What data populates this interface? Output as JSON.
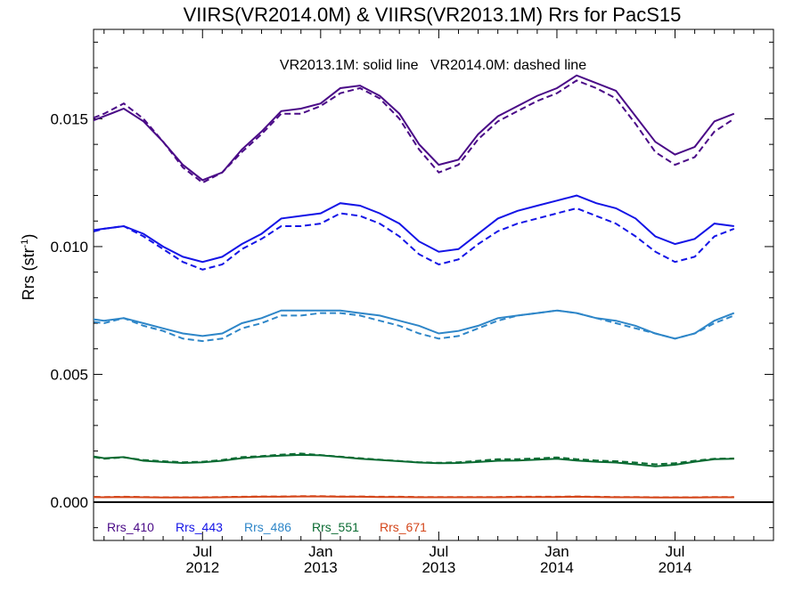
{
  "chart_data": {
    "type": "line",
    "title": "VIIRS(VR2014.0M) & VIIRS(VR2013.1M)  Rrs for PacS15",
    "annotation": "VR2013.1M: solid line   VR2014.0M: dashed line",
    "ylabel_main": "Rrs (str",
    "ylabel_sup": "-1",
    "ylabel_close": ")",
    "x_tick_labels": [
      {
        "x": 6,
        "month": "Jul",
        "year": "2012"
      },
      {
        "x": 12,
        "month": "Jan",
        "year": "2013"
      },
      {
        "x": 18,
        "month": "Jul",
        "year": "2013"
      },
      {
        "x": 24,
        "month": "Jan",
        "year": "2014"
      },
      {
        "x": 30,
        "month": "Jul",
        "year": "2014"
      }
    ],
    "y_tick_labels": [
      {
        "value": 0.0,
        "label": "0.000"
      },
      {
        "value": 0.005,
        "label": "0.005"
      },
      {
        "value": 0.01,
        "label": "0.010"
      },
      {
        "value": 0.015,
        "label": "0.015"
      }
    ],
    "xlim": [
      "2012-01-15",
      "2014-12-01"
    ],
    "ylim": [
      -0.0015,
      0.0185
    ],
    "x": [
      "2012-01-01",
      "2012-02-01",
      "2012-03-01",
      "2012-04-01",
      "2012-05-01",
      "2012-06-01",
      "2012-07-01",
      "2012-08-01",
      "2012-09-01",
      "2012-10-01",
      "2012-11-01",
      "2012-12-01",
      "2013-01-01",
      "2013-02-01",
      "2013-03-01",
      "2013-04-01",
      "2013-05-01",
      "2013-06-01",
      "2013-07-01",
      "2013-08-01",
      "2013-09-01",
      "2013-10-01",
      "2013-11-01",
      "2013-12-01",
      "2014-01-01",
      "2014-02-01",
      "2014-03-01",
      "2014-04-01",
      "2014-05-01",
      "2014-06-01",
      "2014-07-01",
      "2014-08-01",
      "2014-09-01",
      "2014-10-01"
    ],
    "series": [
      {
        "name": "Rrs_410",
        "color": "#4a0a87",
        "solid": [
          0.0148,
          0.0151,
          0.0154,
          0.0149,
          0.0141,
          0.0132,
          0.0126,
          0.0129,
          0.0138,
          0.0145,
          0.0153,
          0.0154,
          0.0156,
          0.0162,
          0.0163,
          0.0159,
          0.0152,
          0.014,
          0.0132,
          0.0134,
          0.0144,
          0.0151,
          0.0155,
          0.0159,
          0.0162,
          0.0167,
          0.0164,
          0.0161,
          0.0151,
          0.0141,
          0.0136,
          0.0139,
          0.0149,
          0.0152
        ],
        "dashed": [
          0.0149,
          0.0152,
          0.0156,
          0.015,
          0.0141,
          0.0131,
          0.0125,
          0.0129,
          0.0137,
          0.0144,
          0.0152,
          0.0152,
          0.0155,
          0.016,
          0.0162,
          0.0158,
          0.015,
          0.0138,
          0.0129,
          0.0132,
          0.0142,
          0.0149,
          0.0153,
          0.0157,
          0.016,
          0.0165,
          0.0162,
          0.0158,
          0.0148,
          0.0137,
          0.0132,
          0.0135,
          0.0145,
          0.015
        ]
      },
      {
        "name": "Rrs_443",
        "color": "#1414e6",
        "solid": [
          0.0106,
          0.0107,
          0.0108,
          0.0105,
          0.01,
          0.0096,
          0.0094,
          0.0096,
          0.0101,
          0.0105,
          0.0111,
          0.0112,
          0.0113,
          0.0117,
          0.0116,
          0.0113,
          0.0109,
          0.0102,
          0.0098,
          0.0099,
          0.0105,
          0.0111,
          0.0114,
          0.0116,
          0.0118,
          0.012,
          0.0117,
          0.0115,
          0.0111,
          0.0104,
          0.0101,
          0.0103,
          0.0109,
          0.0108
        ],
        "dashed": [
          0.0105,
          0.0107,
          0.0108,
          0.0104,
          0.0099,
          0.0094,
          0.0091,
          0.0093,
          0.0099,
          0.0103,
          0.0108,
          0.0108,
          0.0109,
          0.0113,
          0.0112,
          0.0109,
          0.0104,
          0.0097,
          0.0093,
          0.0095,
          0.0101,
          0.0106,
          0.0109,
          0.0111,
          0.0113,
          0.0115,
          0.0112,
          0.0109,
          0.0104,
          0.0098,
          0.0094,
          0.0096,
          0.0104,
          0.0107
        ]
      },
      {
        "name": "Rrs_486",
        "color": "#2e86c8",
        "solid": [
          0.0072,
          0.0071,
          0.0072,
          0.007,
          0.0068,
          0.0066,
          0.0065,
          0.0066,
          0.007,
          0.0072,
          0.0075,
          0.0075,
          0.0075,
          0.0075,
          0.0074,
          0.0073,
          0.0071,
          0.0069,
          0.0066,
          0.0067,
          0.0069,
          0.0072,
          0.0073,
          0.0074,
          0.0075,
          0.0074,
          0.0072,
          0.0071,
          0.0069,
          0.0066,
          0.0064,
          0.0066,
          0.0071,
          0.0074
        ],
        "dashed": [
          0.0071,
          0.007,
          0.0072,
          0.0069,
          0.0067,
          0.0064,
          0.0063,
          0.0064,
          0.0068,
          0.007,
          0.0073,
          0.0073,
          0.0074,
          0.0074,
          0.0073,
          0.0071,
          0.0069,
          0.0066,
          0.0064,
          0.0065,
          0.0068,
          0.0071,
          0.0073,
          0.0074,
          0.0075,
          0.0074,
          0.0072,
          0.007,
          0.0068,
          0.0066,
          0.0064,
          0.0066,
          0.007,
          0.0073
        ]
      },
      {
        "name": "Rrs_551",
        "color": "#0a6b32",
        "solid": [
          0.00185,
          0.00172,
          0.00176,
          0.00162,
          0.00157,
          0.00153,
          0.00156,
          0.00162,
          0.00172,
          0.00178,
          0.00182,
          0.00185,
          0.00183,
          0.00177,
          0.0017,
          0.00165,
          0.0016,
          0.00155,
          0.00152,
          0.00153,
          0.00157,
          0.00162,
          0.00163,
          0.00166,
          0.0017,
          0.00163,
          0.00158,
          0.00155,
          0.00148,
          0.0014,
          0.00146,
          0.00158,
          0.00168,
          0.0017
        ],
        "dashed": [
          0.00182,
          0.0017,
          0.00175,
          0.00165,
          0.0016,
          0.00156,
          0.00158,
          0.00165,
          0.00176,
          0.0018,
          0.00186,
          0.0019,
          0.00184,
          0.00178,
          0.00172,
          0.00166,
          0.00161,
          0.00156,
          0.00154,
          0.00156,
          0.00162,
          0.00168,
          0.00168,
          0.00171,
          0.00175,
          0.00168,
          0.00163,
          0.0016,
          0.00155,
          0.00148,
          0.00152,
          0.00162,
          0.0017,
          0.00171
        ]
      },
      {
        "name": "Rrs_671",
        "color": "#d4461a",
        "solid": [
          0.0002,
          0.00019,
          0.0002,
          0.00019,
          0.00018,
          0.00018,
          0.00018,
          0.00019,
          0.0002,
          0.00021,
          0.00021,
          0.00022,
          0.00022,
          0.00021,
          0.00021,
          0.0002,
          0.0002,
          0.00019,
          0.00019,
          0.00019,
          0.00019,
          0.00019,
          0.0002,
          0.0002,
          0.0002,
          0.00021,
          0.0002,
          0.00019,
          0.00019,
          0.00018,
          0.00018,
          0.00018,
          0.00019,
          0.00019
        ],
        "dashed": [
          0.00021,
          0.0002,
          0.00021,
          0.0002,
          0.00019,
          0.00019,
          0.00019,
          0.0002,
          0.00021,
          0.00022,
          0.00022,
          0.00023,
          0.00023,
          0.00022,
          0.00022,
          0.00021,
          0.00021,
          0.0002,
          0.0002,
          0.0002,
          0.0002,
          0.0002,
          0.00021,
          0.00021,
          0.00021,
          0.00022,
          0.00021,
          0.0002,
          0.0002,
          0.00019,
          0.00019,
          0.00019,
          0.0002,
          0.0002
        ]
      }
    ],
    "zero_line_color": "#000000",
    "legend_placement": "bottom-left",
    "grid": false
  }
}
